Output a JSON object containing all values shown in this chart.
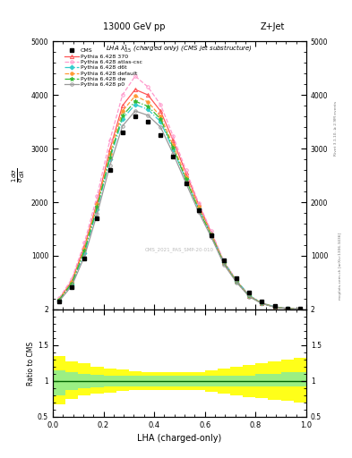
{
  "title_left": "13000 GeV pp",
  "title_right": "Z+Jet",
  "annotation": "LHA $\\lambda^{1}_{0.5}$ (charged only) (CMS jet substructure)",
  "xlabel": "LHA (charged-only)",
  "xlim": [
    0,
    1
  ],
  "ylim_main": [
    0,
    5000
  ],
  "ylim_ratio": [
    0.5,
    2.0
  ],
  "watermark": "CMS_2021_PAS_SMP-20-010",
  "right_label_top": "Rivet 3.1.10, ≥ 2.9M events",
  "right_label_bot": "mcplots.cern.ch [arXiv:1306.3436]",
  "x_data": [
    0.025,
    0.075,
    0.125,
    0.175,
    0.225,
    0.275,
    0.325,
    0.375,
    0.425,
    0.475,
    0.525,
    0.575,
    0.625,
    0.675,
    0.725,
    0.775,
    0.825,
    0.875,
    0.925,
    0.975
  ],
  "cms_data": [
    150,
    420,
    950,
    1700,
    2600,
    3300,
    3600,
    3500,
    3250,
    2850,
    2350,
    1850,
    1380,
    920,
    580,
    310,
    150,
    65,
    22,
    8
  ],
  "cms_xerr": 0.025,
  "py_370_y": [
    190,
    530,
    1180,
    2000,
    2980,
    3800,
    4100,
    4000,
    3700,
    3150,
    2550,
    1960,
    1430,
    880,
    530,
    250,
    115,
    48,
    17,
    6
  ],
  "py_atlas_y": [
    210,
    570,
    1250,
    2120,
    3150,
    4000,
    4350,
    4150,
    3820,
    3230,
    2600,
    1990,
    1460,
    900,
    545,
    258,
    120,
    50,
    18,
    7
  ],
  "py_d6t_y": [
    170,
    470,
    1050,
    1870,
    2800,
    3550,
    3820,
    3730,
    3500,
    2980,
    2430,
    1880,
    1400,
    880,
    540,
    262,
    122,
    51,
    18,
    7
  ],
  "py_default_y": [
    185,
    510,
    1140,
    1960,
    2900,
    3700,
    3980,
    3870,
    3600,
    3060,
    2470,
    1910,
    1400,
    870,
    525,
    250,
    116,
    48,
    17,
    6
  ],
  "py_dw_y": [
    178,
    490,
    1100,
    1910,
    2840,
    3610,
    3880,
    3790,
    3550,
    3010,
    2430,
    1870,
    1380,
    860,
    515,
    245,
    113,
    47,
    16,
    6
  ],
  "py_p0_y": [
    155,
    440,
    990,
    1780,
    2680,
    3420,
    3700,
    3620,
    3400,
    2900,
    2360,
    1820,
    1350,
    840,
    505,
    240,
    110,
    45,
    16,
    6
  ],
  "ratio_bins_x": [
    0.0,
    0.05,
    0.1,
    0.15,
    0.2,
    0.25,
    0.3,
    0.35,
    0.4,
    0.45,
    0.5,
    0.55,
    0.6,
    0.65,
    0.7,
    0.75,
    0.8,
    0.85,
    0.9,
    0.95,
    1.0
  ],
  "ratio_green_lo": [
    0.8,
    0.88,
    0.9,
    0.91,
    0.92,
    0.93,
    0.93,
    0.93,
    0.93,
    0.93,
    0.93,
    0.93,
    0.93,
    0.92,
    0.92,
    0.92,
    0.92,
    0.92,
    0.92,
    0.92
  ],
  "ratio_green_hi": [
    1.15,
    1.12,
    1.1,
    1.09,
    1.08,
    1.07,
    1.07,
    1.07,
    1.07,
    1.07,
    1.07,
    1.07,
    1.07,
    1.08,
    1.08,
    1.08,
    1.1,
    1.1,
    1.12,
    1.12
  ],
  "ratio_yellow_lo": [
    0.68,
    0.75,
    0.8,
    0.82,
    0.84,
    0.86,
    0.87,
    0.87,
    0.87,
    0.87,
    0.87,
    0.87,
    0.85,
    0.82,
    0.8,
    0.78,
    0.76,
    0.74,
    0.72,
    0.7
  ],
  "ratio_yellow_hi": [
    1.35,
    1.28,
    1.25,
    1.2,
    1.18,
    1.16,
    1.14,
    1.13,
    1.13,
    1.13,
    1.13,
    1.13,
    1.15,
    1.18,
    1.2,
    1.22,
    1.25,
    1.27,
    1.3,
    1.32
  ],
  "color_370": "#ff5555",
  "color_atlas": "#ff99cc",
  "color_d6t": "#33cccc",
  "color_default": "#ff9933",
  "color_dw": "#33bb33",
  "color_p0": "#999999",
  "color_cms": "#000000"
}
